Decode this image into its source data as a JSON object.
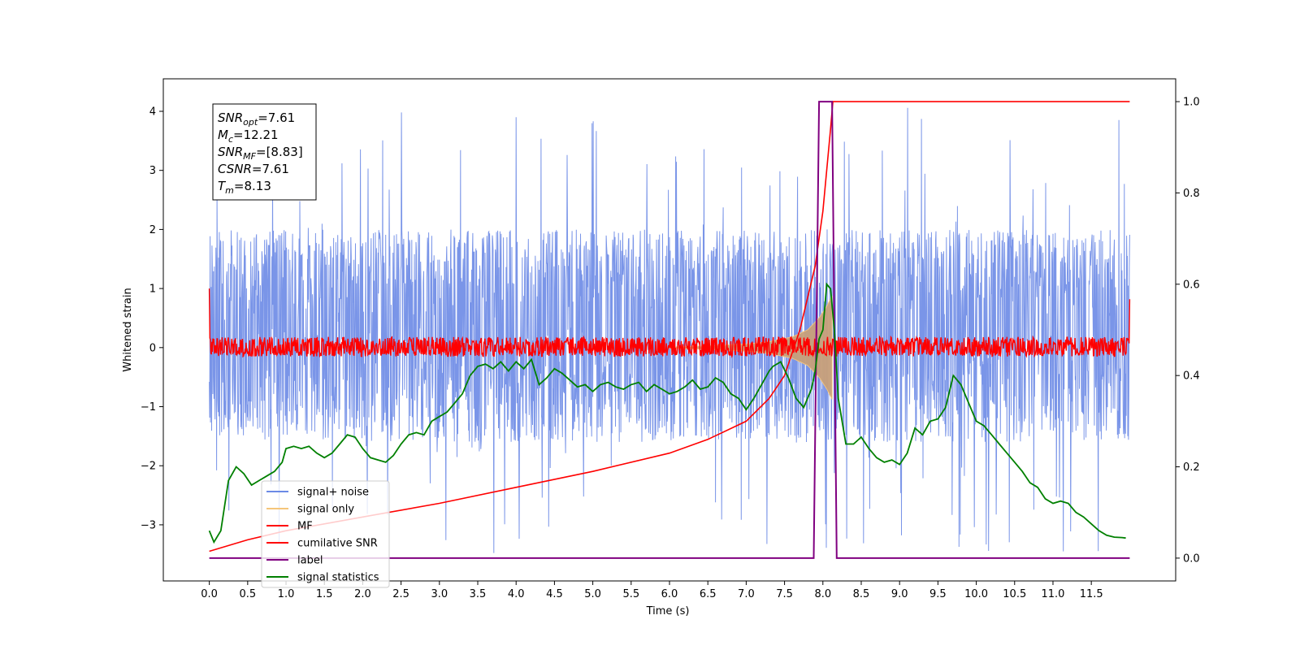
{
  "chart_data": {
    "type": "line",
    "xlabel": "Time (s)",
    "ylabel": "Whitened strain",
    "xlim": [
      -0.6,
      12.6
    ],
    "ylim": [
      -3.95,
      4.55
    ],
    "y2lim": [
      -0.05,
      1.05
    ],
    "xticks": [
      "0.0",
      "0.5",
      "1.0",
      "1.5",
      "2.0",
      "2.5",
      "3.0",
      "3.5",
      "4.0",
      "4.5",
      "5.0",
      "5.5",
      "6.0",
      "6.5",
      "7.0",
      "7.5",
      "8.0",
      "8.5",
      "9.0",
      "9.5",
      "10.0",
      "10.5",
      "11.0",
      "11.5"
    ],
    "yticks": [
      "−3",
      "−2",
      "−1",
      "0",
      "1",
      "2",
      "3",
      "4"
    ],
    "y2ticks": [
      "0.0",
      "0.2",
      "0.4",
      "0.6",
      "0.8",
      "1.0"
    ],
    "grid": false,
    "legend_position": "bottom-left",
    "annotation": [
      {
        "main": "SNR",
        "sub": "opt",
        "value": "=7.61"
      },
      {
        "main": "M",
        "sub": "c",
        "value": "=12.21"
      },
      {
        "main": "SNR",
        "sub": "MF",
        "value": "=[8.83]"
      },
      {
        "main": "CSNR",
        "sub": "",
        "value": "=7.61"
      },
      {
        "main": "T",
        "sub": "m",
        "value": "=8.13"
      }
    ],
    "series": [
      {
        "name": "signal+ noise",
        "color": "#6b8ae6",
        "axis": "left",
        "kind": "noise_band",
        "mean": 0.4,
        "band_upper": 2.0,
        "band_lower": -1.6,
        "peak_max": 4.15,
        "peak_min": -3.5
      },
      {
        "name": "signal only",
        "color": "#f5c57a",
        "axis": "left",
        "kind": "chirp",
        "fill": "#c8a07a",
        "x": [
          6.0,
          6.5,
          7.0,
          7.3,
          7.6,
          7.8,
          7.95,
          8.05,
          8.13
        ],
        "amplitude": [
          0.01,
          0.03,
          0.06,
          0.1,
          0.18,
          0.3,
          0.5,
          0.7,
          0.9
        ]
      },
      {
        "name": "MF",
        "color": "#ff0000",
        "axis": "left",
        "kind": "noise_band",
        "mean": 0.0,
        "band_upper": 0.18,
        "band_lower": -0.15,
        "start_value": 1.0,
        "end_value": 0.82
      },
      {
        "name": "cumilative SNR",
        "color": "#ff0000",
        "axis": "right",
        "x": [
          0.0,
          0.5,
          1.0,
          2.0,
          3.0,
          4.0,
          5.0,
          6.0,
          6.5,
          7.0,
          7.3,
          7.5,
          7.7,
          7.9,
          8.0,
          8.05,
          8.1,
          8.13,
          8.14,
          12.0
        ],
        "y": [
          0.015,
          0.04,
          0.06,
          0.09,
          0.12,
          0.155,
          0.19,
          0.23,
          0.26,
          0.3,
          0.35,
          0.4,
          0.5,
          0.64,
          0.76,
          0.85,
          0.94,
          1.0,
          1.0,
          1.0
        ]
      },
      {
        "name": "label",
        "color": "#800080",
        "axis": "right",
        "x": [
          0.0,
          7.88,
          7.95,
          8.12,
          8.18,
          12.0
        ],
        "y": [
          0.0,
          0.0,
          1.0,
          1.0,
          0.0,
          0.0
        ]
      },
      {
        "name": "signal statistics",
        "color": "#008000",
        "axis": "right",
        "x": [
          0.0,
          0.06,
          0.15,
          0.25,
          0.35,
          0.45,
          0.55,
          0.65,
          0.75,
          0.85,
          0.95,
          1.0,
          1.1,
          1.2,
          1.3,
          1.4,
          1.5,
          1.6,
          1.7,
          1.8,
          1.9,
          2.0,
          2.1,
          2.2,
          2.3,
          2.4,
          2.5,
          2.6,
          2.7,
          2.8,
          2.9,
          3.0,
          3.1,
          3.2,
          3.3,
          3.4,
          3.5,
          3.6,
          3.7,
          3.8,
          3.9,
          4.0,
          4.1,
          4.2,
          4.3,
          4.4,
          4.5,
          4.6,
          4.7,
          4.8,
          4.9,
          5.0,
          5.1,
          5.2,
          5.3,
          5.4,
          5.5,
          5.6,
          5.7,
          5.8,
          5.9,
          6.0,
          6.1,
          6.2,
          6.3,
          6.4,
          6.5,
          6.6,
          6.7,
          6.8,
          6.9,
          7.0,
          7.1,
          7.2,
          7.3,
          7.35,
          7.45,
          7.55,
          7.65,
          7.75,
          7.8,
          7.85,
          7.9,
          7.95,
          8.0,
          8.05,
          8.1,
          8.15,
          8.2,
          8.3,
          8.4,
          8.5,
          8.6,
          8.7,
          8.8,
          8.9,
          9.0,
          9.1,
          9.2,
          9.3,
          9.4,
          9.5,
          9.6,
          9.7,
          9.8,
          9.9,
          10.0,
          10.1,
          10.2,
          10.3,
          10.4,
          10.5,
          10.6,
          10.7,
          10.8,
          10.9,
          11.0,
          11.1,
          11.2,
          11.3,
          11.4,
          11.5,
          11.6,
          11.7,
          11.8,
          11.9,
          11.95
        ],
        "y": [
          0.06,
          0.035,
          0.06,
          0.17,
          0.2,
          0.185,
          0.16,
          0.17,
          0.18,
          0.19,
          0.21,
          0.24,
          0.245,
          0.24,
          0.245,
          0.23,
          0.22,
          0.23,
          0.25,
          0.27,
          0.265,
          0.24,
          0.22,
          0.215,
          0.21,
          0.225,
          0.25,
          0.27,
          0.275,
          0.27,
          0.3,
          0.31,
          0.32,
          0.34,
          0.36,
          0.4,
          0.42,
          0.425,
          0.415,
          0.43,
          0.41,
          0.43,
          0.415,
          0.435,
          0.38,
          0.395,
          0.415,
          0.405,
          0.39,
          0.375,
          0.38,
          0.365,
          0.38,
          0.385,
          0.375,
          0.37,
          0.38,
          0.385,
          0.365,
          0.38,
          0.37,
          0.36,
          0.365,
          0.375,
          0.39,
          0.37,
          0.375,
          0.395,
          0.385,
          0.36,
          0.35,
          0.325,
          0.35,
          0.38,
          0.41,
          0.42,
          0.43,
          0.395,
          0.35,
          0.33,
          0.35,
          0.37,
          0.41,
          0.48,
          0.5,
          0.6,
          0.59,
          0.5,
          0.35,
          0.25,
          0.25,
          0.265,
          0.24,
          0.22,
          0.21,
          0.215,
          0.205,
          0.23,
          0.285,
          0.27,
          0.3,
          0.305,
          0.33,
          0.4,
          0.38,
          0.34,
          0.3,
          0.29,
          0.27,
          0.25,
          0.23,
          0.21,
          0.19,
          0.165,
          0.155,
          0.13,
          0.12,
          0.125,
          0.12,
          0.1,
          0.09,
          0.075,
          0.06,
          0.05,
          0.046,
          0.045,
          0.044
        ]
      }
    ]
  }
}
